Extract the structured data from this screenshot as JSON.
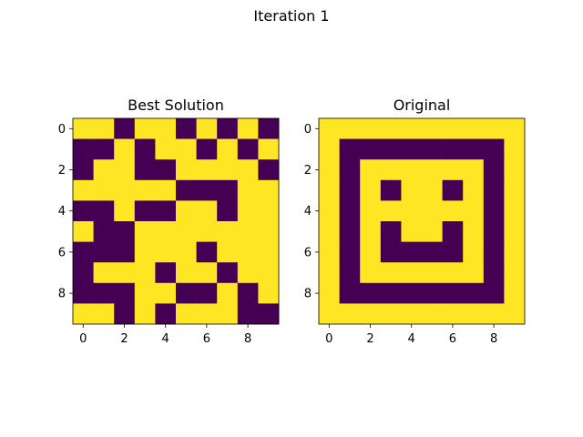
{
  "figure": {
    "title": "Iteration 1"
  },
  "colors": {
    "zero": "#440154",
    "one": "#fde725"
  },
  "chart_data": [
    {
      "type": "heatmap",
      "title": "Best Solution",
      "xlabel": "",
      "ylabel": "",
      "xticks": [
        0,
        2,
        4,
        6,
        8
      ],
      "yticks": [
        0,
        2,
        4,
        6,
        8
      ],
      "xlim": [
        -0.5,
        9.5
      ],
      "ylim": [
        9.5,
        -0.5
      ],
      "grid": false,
      "values": [
        [
          1,
          1,
          0,
          1,
          1,
          0,
          1,
          0,
          1,
          0
        ],
        [
          0,
          0,
          1,
          0,
          1,
          1,
          0,
          1,
          0,
          1
        ],
        [
          0,
          1,
          1,
          0,
          0,
          1,
          1,
          1,
          1,
          0
        ],
        [
          1,
          1,
          1,
          1,
          1,
          0,
          0,
          0,
          1,
          1
        ],
        [
          0,
          0,
          1,
          0,
          0,
          1,
          1,
          0,
          1,
          1
        ],
        [
          1,
          0,
          0,
          1,
          1,
          1,
          1,
          1,
          1,
          1
        ],
        [
          0,
          0,
          0,
          1,
          1,
          1,
          0,
          1,
          1,
          1
        ],
        [
          0,
          1,
          1,
          1,
          0,
          1,
          1,
          0,
          1,
          1
        ],
        [
          0,
          0,
          0,
          1,
          1,
          0,
          0,
          1,
          0,
          1
        ],
        [
          1,
          1,
          0,
          1,
          0,
          1,
          1,
          1,
          0,
          0
        ]
      ]
    },
    {
      "type": "heatmap",
      "title": "Original",
      "xlabel": "",
      "ylabel": "",
      "xticks": [
        0,
        2,
        4,
        6,
        8
      ],
      "yticks": [
        0,
        2,
        4,
        6,
        8
      ],
      "xlim": [
        -0.5,
        9.5
      ],
      "ylim": [
        9.5,
        -0.5
      ],
      "grid": false,
      "values": [
        [
          1,
          1,
          1,
          1,
          1,
          1,
          1,
          1,
          1,
          1
        ],
        [
          1,
          0,
          0,
          0,
          0,
          0,
          0,
          0,
          0,
          1
        ],
        [
          1,
          0,
          1,
          1,
          1,
          1,
          1,
          1,
          0,
          1
        ],
        [
          1,
          0,
          1,
          0,
          1,
          1,
          0,
          1,
          0,
          1
        ],
        [
          1,
          0,
          1,
          1,
          1,
          1,
          1,
          1,
          0,
          1
        ],
        [
          1,
          0,
          1,
          0,
          1,
          1,
          0,
          1,
          0,
          1
        ],
        [
          1,
          0,
          1,
          0,
          0,
          0,
          0,
          1,
          0,
          1
        ],
        [
          1,
          0,
          1,
          1,
          1,
          1,
          1,
          1,
          0,
          1
        ],
        [
          1,
          0,
          0,
          0,
          0,
          0,
          0,
          0,
          0,
          1
        ],
        [
          1,
          1,
          1,
          1,
          1,
          1,
          1,
          1,
          1,
          1
        ]
      ]
    }
  ]
}
